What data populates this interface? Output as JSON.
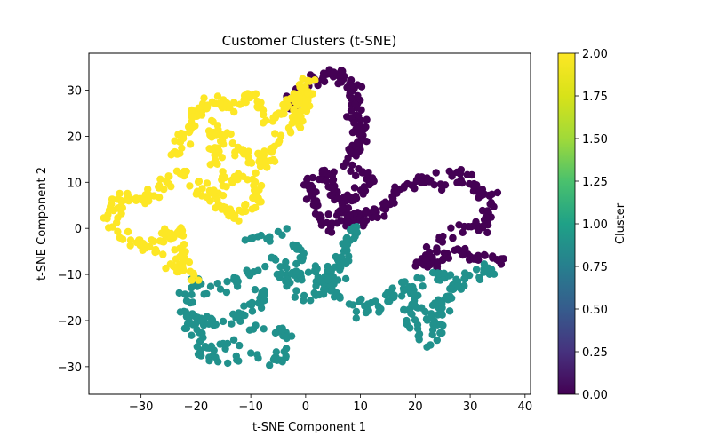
{
  "chart_data": {
    "type": "scatter",
    "title": "Customer Clusters (t-SNE)",
    "xlabel": "t-SNE Component 1",
    "ylabel": "t-SNE Component 2",
    "xlim": [
      -39.5,
      41
    ],
    "ylim": [
      -36,
      38
    ],
    "xticks": [
      -30,
      -20,
      -10,
      0,
      10,
      20,
      30,
      40
    ],
    "yticks": [
      -30,
      -20,
      -10,
      0,
      10,
      20,
      30
    ],
    "xtick_labels": [
      "−30",
      "−20",
      "−10",
      "0",
      "10",
      "20",
      "30",
      "40"
    ],
    "ytick_labels": [
      "−30",
      "−20",
      "−10",
      "0",
      "10",
      "20",
      "30"
    ],
    "grid": false,
    "colormap": "viridis",
    "colorbar": {
      "label": "Cluster",
      "range": [
        0,
        2
      ],
      "ticks": [
        0,
        0.25,
        0.5,
        0.75,
        1.0,
        1.25,
        1.5,
        1.75,
        2.0
      ],
      "tick_labels": [
        "0.00",
        "0.25",
        "0.50",
        "0.75",
        "1.00",
        "1.25",
        "1.50",
        "1.75",
        "2.00"
      ]
    },
    "clusters": [
      {
        "value": 0,
        "color": "#440154",
        "approx_points": 420,
        "path_x": [
          -3,
          0,
          4,
          8,
          9,
          10,
          8,
          12,
          10,
          7,
          5,
          2,
          1,
          4,
          8,
          10,
          14,
          17,
          22,
          25,
          28,
          32,
          34,
          33,
          28,
          24,
          21,
          23,
          27,
          30,
          35,
          36
        ],
        "path_y": [
          26,
          30,
          34,
          32,
          28,
          20,
          14,
          10,
          8,
          5,
          0,
          4,
          10,
          12,
          1,
          1,
          4,
          8,
          11,
          10,
          12,
          8,
          5,
          0,
          0,
          -4,
          -8,
          -9,
          -4,
          -6,
          -6,
          -8
        ]
      },
      {
        "value": 1,
        "color": "#21918c",
        "approx_points": 430,
        "path_x": [
          -10,
          -6,
          -3,
          0,
          5,
          8,
          9,
          6,
          2,
          -2,
          -4,
          -5,
          -8,
          -11,
          -14,
          -16,
          -20,
          -22,
          -19,
          -20,
          -14,
          -10,
          -6,
          -3,
          -6,
          -10,
          -13,
          -16,
          -18,
          -21,
          -14,
          -9,
          -5,
          1,
          6,
          10,
          15,
          18,
          20,
          22,
          24,
          28,
          24,
          20,
          18,
          20,
          23,
          26,
          30,
          35
        ],
        "path_y": [
          -3,
          -2,
          0,
          -8,
          -12,
          -4,
          0,
          -6,
          -15,
          -14,
          -10,
          -6,
          -8,
          -10,
          -12,
          -14,
          -11,
          -18,
          -26,
          -28,
          -25,
          -22,
          -20,
          -25,
          -29,
          -27,
          -29,
          -30,
          -26,
          -20,
          -20,
          -16,
          -10,
          -10,
          -14,
          -18,
          -16,
          -12,
          -16,
          -20,
          -16,
          -12,
          -10,
          -12,
          -18,
          -23,
          -25,
          -14,
          -10,
          -9
        ]
      },
      {
        "value": 2,
        "color": "#fde725",
        "approx_points": 420,
        "path_x": [
          -24,
          -22,
          -20,
          -17,
          -14,
          -11,
          -9,
          -6,
          -4,
          -2,
          0,
          1,
          -2,
          -5,
          -8,
          -12,
          -15,
          -17,
          -16,
          -14,
          -10,
          -8,
          -11,
          -13,
          -16,
          -19,
          -22,
          -26,
          -30,
          -33,
          -36,
          -34,
          -30,
          -27,
          -24,
          -22,
          -24,
          -20
        ],
        "path_y": [
          16,
          20,
          24,
          28,
          26,
          29,
          27,
          23,
          25,
          28,
          31,
          33,
          22,
          20,
          14,
          16,
          20,
          22,
          14,
          10,
          12,
          7,
          4,
          2,
          6,
          8,
          12,
          10,
          6,
          7,
          3,
          -1,
          -4,
          -4,
          0,
          -5,
          -8,
          -10
        ]
      }
    ]
  }
}
